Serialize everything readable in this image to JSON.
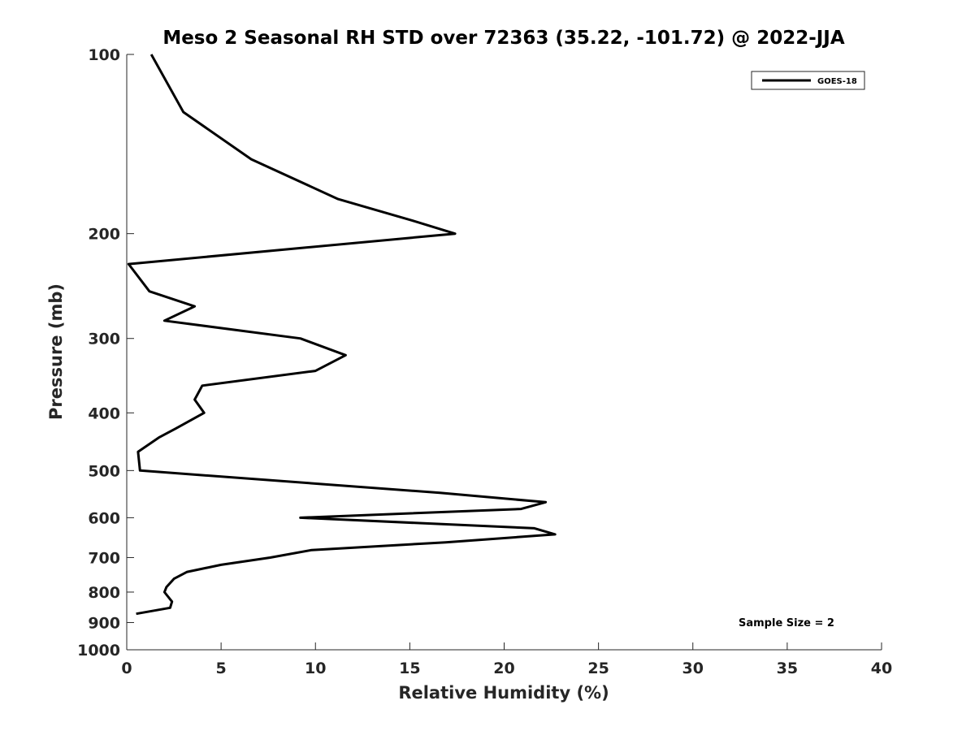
{
  "chart_data": {
    "type": "line",
    "title": "Meso 2 Seasonal RH STD over 72363 (35.22, -101.72) @ 2022-JJA",
    "xlabel": "Relative Humidity (%)",
    "ylabel": "Pressure (mb)",
    "xlim": [
      0,
      40
    ],
    "ylim": [
      1000,
      100
    ],
    "yscale": "log",
    "grid": false,
    "legend_position": "top-right",
    "x_ticks": [
      0,
      5,
      10,
      15,
      20,
      25,
      30,
      35,
      40
    ],
    "x_tick_labels": [
      "0",
      "5",
      "10",
      "15",
      "20",
      "25",
      "30",
      "35",
      "40"
    ],
    "y_ticks": [
      100,
      200,
      300,
      400,
      500,
      600,
      700,
      800,
      900,
      1000
    ],
    "y_tick_labels": [
      "100",
      "200",
      "300",
      "400",
      "500",
      "600",
      "700",
      "800",
      "900",
      "1000"
    ],
    "annotation": "Sample Size = 2",
    "series": [
      {
        "name": "GOES-18",
        "color": "#000000",
        "points": [
          {
            "x": 1.3,
            "p": 100
          },
          {
            "x": 3.0,
            "p": 125
          },
          {
            "x": 6.6,
            "p": 150
          },
          {
            "x": 11.2,
            "p": 175
          },
          {
            "x": 15.1,
            "p": 190
          },
          {
            "x": 17.4,
            "p": 200
          },
          {
            "x": 0.1,
            "p": 225
          },
          {
            "x": 1.2,
            "p": 250
          },
          {
            "x": 3.6,
            "p": 265
          },
          {
            "x": 2.0,
            "p": 280
          },
          {
            "x": 9.2,
            "p": 300
          },
          {
            "x": 11.6,
            "p": 320
          },
          {
            "x": 10.0,
            "p": 340
          },
          {
            "x": 4.0,
            "p": 360
          },
          {
            "x": 3.6,
            "p": 380
          },
          {
            "x": 4.1,
            "p": 400
          },
          {
            "x": 2.6,
            "p": 425
          },
          {
            "x": 1.7,
            "p": 440
          },
          {
            "x": 0.6,
            "p": 465
          },
          {
            "x": 0.7,
            "p": 500
          },
          {
            "x": 16.6,
            "p": 545
          },
          {
            "x": 22.2,
            "p": 565
          },
          {
            "x": 20.9,
            "p": 580
          },
          {
            "x": 9.2,
            "p": 600
          },
          {
            "x": 21.6,
            "p": 625
          },
          {
            "x": 22.7,
            "p": 640
          },
          {
            "x": 16.9,
            "p": 660
          },
          {
            "x": 9.8,
            "p": 680
          },
          {
            "x": 7.6,
            "p": 700
          },
          {
            "x": 5.0,
            "p": 720
          },
          {
            "x": 3.2,
            "p": 740
          },
          {
            "x": 2.5,
            "p": 760
          },
          {
            "x": 2.1,
            "p": 785
          },
          {
            "x": 2.0,
            "p": 800
          },
          {
            "x": 2.4,
            "p": 830
          },
          {
            "x": 2.3,
            "p": 850
          },
          {
            "x": 0.5,
            "p": 870
          }
        ]
      }
    ]
  }
}
